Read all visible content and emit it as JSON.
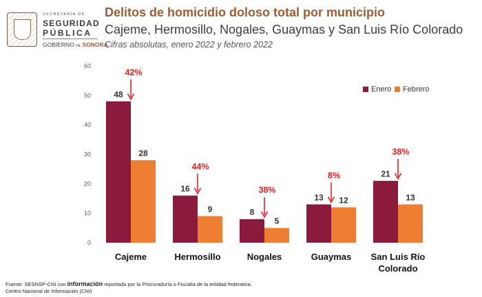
{
  "logo": {
    "small": "SECRETARÍA DE",
    "line1": "SEGURIDAD",
    "line2": "PÚBLICA",
    "gobierno": "GOBIERNO",
    "de": "DE",
    "sonora": "SONORA"
  },
  "header": {
    "title": "Delitos de homicidio doloso total por municipio",
    "subtitle": "Cajeme, Hermosillo, Nogales, Guaymas y San Luis Río Colorado",
    "note": "Cifras absolutas, enero 2022 y febrero 2022"
  },
  "chart_data": {
    "type": "bar",
    "categories": [
      [
        "Cajeme"
      ],
      [
        "Hermosillo"
      ],
      [
        "Nogales"
      ],
      [
        "Guaymas"
      ],
      [
        "San Luis Río",
        "Colorado"
      ]
    ],
    "series": [
      {
        "name": "Enero",
        "values": [
          48,
          16,
          8,
          13,
          21
        ],
        "color": "#8c1a3c"
      },
      {
        "name": "Febrero",
        "values": [
          28,
          9,
          5,
          12,
          13
        ],
        "color": "#ed7d31"
      }
    ],
    "annotations": [
      "42%",
      "44%",
      "38%",
      "8%",
      "38%"
    ],
    "annotation_color": "#e31e24",
    "ylim": [
      0,
      60
    ],
    "yticks": [
      0,
      10,
      20,
      30,
      40,
      50,
      60
    ],
    "grid": false,
    "legend_position": "top-right"
  },
  "source": {
    "prefix": "Fuente: SESNSP-CNI con ",
    "bold": "información",
    "suffix": " reportada por la Procuraduría o Fiscalía de la entidad federativa.",
    "line2": "Centro Nacional de Información (CNI)"
  }
}
